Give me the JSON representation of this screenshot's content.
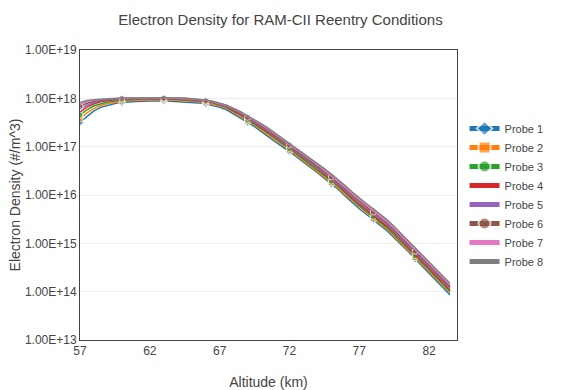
{
  "chart_data": {
    "type": "line",
    "title": "Electron Density for RAM-CII Reentry Conditions",
    "xlabel": "Altitude (km)",
    "ylabel": "Electron Density (#/m^3)",
    "log": "y",
    "grid": "y",
    "legend": "right",
    "xlim": [
      57,
      84
    ],
    "xticks": [
      57,
      62,
      67,
      72,
      77,
      82
    ],
    "ylim": [
      10000000000000.0,
      1e+19
    ],
    "yticks": [
      {
        "value": 10000000000000.0,
        "label": "1.00E+13"
      },
      {
        "value": 100000000000000.0,
        "label": "1.00E+14"
      },
      {
        "value": 1000000000000000.0,
        "label": "1.00E+15"
      },
      {
        "value": 1e+16,
        "label": "1.00E+16"
      },
      {
        "value": 1e+17,
        "label": "1.00E+17"
      },
      {
        "value": 1e+18,
        "label": "1.00E+18"
      },
      {
        "value": 1e+19,
        "label": "1.00E+19"
      }
    ],
    "x": [
      57.0,
      57.5,
      58.0,
      58.5,
      59.0,
      59.5,
      60.0,
      60.5,
      61.0,
      61.5,
      62.0,
      62.5,
      63.0,
      63.5,
      64.0,
      64.5,
      65.0,
      65.5,
      66.0,
      66.5,
      67.0,
      67.5,
      68.0,
      68.5,
      69.0,
      69.5,
      70.0,
      70.5,
      71.0,
      71.5,
      72.0,
      72.5,
      73.0,
      73.5,
      74.0,
      74.5,
      75.0,
      75.5,
      76.0,
      76.5,
      77.0,
      77.5,
      78.0,
      78.5,
      79.0,
      79.5,
      80.0,
      80.5,
      81.0,
      81.5,
      82.0,
      82.5,
      83.0,
      83.5
    ],
    "series": [
      {
        "name": "Probe 1",
        "marker": "diamond",
        "values": [
          3.2e+17,
          4.2e+17,
          5.5e+17,
          6.5e+17,
          7.2e+17,
          7.8e+17,
          8.2e+17,
          8.5e+17,
          8.6e+17,
          8.7e+17,
          8.8e+17,
          8.85e+17,
          8.9e+17,
          8.75e+17,
          8.6e+17,
          8.4e+17,
          8.2e+17,
          8e+17,
          7.7e+17,
          7.2e+17,
          6.5e+17,
          5.8e+17,
          4.8e+17,
          4e+17,
          3.2e+17,
          2.6e+17,
          2e+17,
          1.6e+17,
          1.25e+17,
          1e+17,
          8e+16,
          6.2e+16,
          4.8e+16,
          3.8e+16,
          2.9e+16,
          2.2e+16,
          1.7e+16,
          1.3e+16,
          9500000000000000.0,
          7000000000000000.0,
          5200000000000000.0,
          4000000000000000.0,
          3100000000000000.0,
          2400000000000000.0,
          1800000000000000.0,
          1300000000000000.0,
          950000000000000.0,
          680000000000000.0,
          480000000000000.0,
          340000000000000.0,
          240000000000000.0,
          170000000000000.0,
          120000000000000.0,
          85000000000000.0
        ]
      },
      {
        "name": "Probe 2",
        "marker": "square",
        "values": [
          3.8e+17,
          5e+17,
          6.2e+17,
          7.1e+17,
          7.8e+17,
          8.3e+17,
          8.7e+17,
          9e+17,
          9.1e+17,
          9.2e+17,
          9.3e+17,
          9.35e+17,
          9.4e+17,
          9.25e+17,
          9.1e+17,
          8.9e+17,
          8.7e+17,
          8.5e+17,
          8.1e+17,
          7.6e+17,
          6.9e+17,
          6.2e+17,
          5.1e+17,
          4.3e+17,
          3.4e+17,
          2.8e+17,
          2.2e+17,
          1.75e+17,
          1.35e+17,
          1.1e+17,
          8.5e+16,
          6.6e+16,
          5.1e+16,
          4e+16,
          3.1e+16,
          2.35e+16,
          1.8e+16,
          1.38e+16,
          1e+16,
          7500000000000000.0,
          5600000000000000.0,
          4300000000000000.0,
          3300000000000000.0,
          2550000000000000.0,
          1950000000000000.0,
          1400000000000000.0,
          1000000000000000.0,
          720000000000000.0,
          510000000000000.0,
          365000000000000.0,
          260000000000000.0,
          185000000000000.0,
          132000000000000.0,
          95000000000000.0
        ]
      },
      {
        "name": "Probe 3",
        "marker": "circle",
        "values": [
          4.5e+17,
          5.8e+17,
          7e+17,
          7.8e+17,
          8.4e+17,
          8.8e+17,
          9.2e+17,
          9.4e+17,
          9.55e+17,
          9.65e+17,
          9.7e+17,
          9.75e+17,
          9.75e+17,
          9.65e+17,
          9.5e+17,
          9.3e+17,
          9.1e+17,
          8.85e+17,
          8.5e+17,
          8e+17,
          7.2e+17,
          6.5e+17,
          5.4e+17,
          4.5e+17,
          3.6e+17,
          2.95e+17,
          2.35e+17,
          1.87e+17,
          1.45e+17,
          1.17e+17,
          9.1e+16,
          7.1e+16,
          5.5e+16,
          4.3e+16,
          3.3e+16,
          2.52e+16,
          1.93e+16,
          1.48e+16,
          1.08e+16,
          8000000000000000.0,
          6000000000000000.0,
          4620000000000000.0,
          3550000000000000.0,
          2740000000000000.0,
          2090000000000000.0,
          1510000000000000.0,
          1080000000000000.0,
          774000000000000.0,
          550000000000000.0,
          394000000000000.0,
          280000000000000.0,
          200000000000000.0,
          142000000000000.0,
          102000000000000.0
        ]
      },
      {
        "name": "Probe 4",
        "values": [
          5.2e+17,
          6.6e+17,
          7.7e+17,
          8.5e+17,
          9e+17,
          9.3e+17,
          9.6e+17,
          9.75e+17,
          9.85e+17,
          9.9e+17,
          9.95e+17,
          9.95e+17,
          9.95e+17,
          9.85e+17,
          9.7e+17,
          9.5e+17,
          9.3e+17,
          9.1e+17,
          8.7e+17,
          8.2e+17,
          7.5e+17,
          6.7e+17,
          5.6e+17,
          4.7e+17,
          3.8e+17,
          3.1e+17,
          2.48e+17,
          1.98e+17,
          1.55e+17,
          1.24e+17,
          9.7e+16,
          7.6e+16,
          5.88e+16,
          4.6e+16,
          3.55e+16,
          2.71e+16,
          2.08e+16,
          1.59e+16,
          1.16e+16,
          8600000000000000.0,
          6450000000000000.0,
          4970000000000000.0,
          3830000000000000.0,
          2950000000000000.0,
          2250000000000000.0,
          1630000000000000.0,
          1160000000000000.0,
          830000000000000.0,
          590000000000000.0,
          420000000000000.0,
          300000000000000.0,
          215000000000000.0,
          153000000000000.0,
          110000000000000.0
        ]
      },
      {
        "name": "Probe 5",
        "values": [
          6e+17,
          7.2e+17,
          8.2e+17,
          8.9e+17,
          9.3e+17,
          9.6e+17,
          9.8e+17,
          9.9e+17,
          9.95e+17,
          1e+18,
          1e+18,
          1e+18,
          1e+18,
          9.9e+17,
          9.8e+17,
          9.6e+17,
          9.4e+17,
          9.2e+17,
          8.8e+17,
          8.3e+17,
          7.6e+17,
          6.8e+17,
          5.75e+17,
          4.85e+17,
          3.9e+17,
          3.22e+17,
          2.58e+17,
          2.07e+17,
          1.62e+17,
          1.3e+17,
          1.02e+17,
          8e+16,
          6.2e+16,
          4.86e+16,
          3.75e+16,
          2.87e+16,
          2.2e+16,
          1.69e+16,
          1.24e+16,
          9200000000000000.0,
          6900000000000000.0,
          5320000000000000.0,
          4100000000000000.0,
          3160000000000000.0,
          2420000000000000.0,
          1750000000000000.0,
          1250000000000000.0,
          890000000000000.0,
          635000000000000.0,
          450000000000000.0,
          320000000000000.0,
          230000000000000.0,
          164000000000000.0,
          118000000000000.0
        ]
      },
      {
        "name": "Probe 6",
        "marker": "circle",
        "values": [
          6.8e+17,
          7.9e+17,
          8.7e+17,
          9.3e+17,
          9.6e+17,
          9.8e+17,
          9.95e+17,
          1e+18,
          1.01e+18,
          1.01e+18,
          1.01e+18,
          1.01e+18,
          1.01e+18,
          1.01e+18,
          9.95e+17,
          9.75e+17,
          9.55e+17,
          9.3e+17,
          8.95e+17,
          8.45e+17,
          7.75e+17,
          7e+17,
          5.9e+17,
          5e+17,
          4.05e+17,
          3.35e+17,
          2.7e+17,
          2.17e+17,
          1.7e+17,
          1.37e+17,
          1.08e+17,
          8.5e+16,
          6.62e+16,
          5.2e+16,
          4e+16,
          3.07e+16,
          2.36e+16,
          1.81e+16,
          1.33e+16,
          9900000000000000.0,
          7420000000000000.0,
          5730000000000000.0,
          4420000000000000.0,
          3410000000000000.0,
          2600000000000000.0,
          1890000000000000.0,
          1350000000000000.0,
          960000000000000.0,
          685000000000000.0,
          486000000000000.0,
          346000000000000.0,
          247000000000000.0,
          176000000000000.0,
          127000000000000.0
        ]
      },
      {
        "name": "Probe 7",
        "values": [
          7.5e+17,
          8.5e+17,
          9.1e+17,
          9.5e+17,
          9.75e+17,
          9.9e+17,
          1e+18,
          1.01e+18,
          1.02e+18,
          1.02e+18,
          1.02e+18,
          1.02e+18,
          1.02e+18,
          1.02e+18,
          1.01e+18,
          9.9e+17,
          9.7e+17,
          9.5e+17,
          9.1e+17,
          8.6e+17,
          7.9e+17,
          7.1e+17,
          6.05e+17,
          5.15e+17,
          4.2e+17,
          3.48e+17,
          2.82e+17,
          2.28e+17,
          1.79e+17,
          1.44e+17,
          1.14e+17,
          9e+16,
          7.03e+16,
          5.53e+16,
          4.27e+16,
          3.27e+16,
          2.52e+16,
          1.94e+16,
          1.43e+16,
          1.06e+16,
          7980000000000000.0,
          6170000000000000.0,
          4770000000000000.0,
          3680000000000000.0,
          2810000000000000.0,
          2040000000000000.0,
          1460000000000000.0,
          1040000000000000.0,
          740000000000000.0,
          527000000000000.0,
          374000000000000.0,
          267000000000000.0,
          190000000000000.0,
          137000000000000.0
        ]
      },
      {
        "name": "Probe 8",
        "values": [
          8.2e+17,
          9e+17,
          9.4e+17,
          9.7e+17,
          9.88e+17,
          9.97e+17,
          1.01e+18,
          1.02e+18,
          1.02e+18,
          1.02e+18,
          1.03e+18,
          1.03e+18,
          1.03e+18,
          1.03e+18,
          1.02e+18,
          1.01e+18,
          9.85e+17,
          9.65e+17,
          9.25e+17,
          8.75e+17,
          8.05e+17,
          7.25e+17,
          6.2e+17,
          5.3e+17,
          4.35e+17,
          3.62e+17,
          2.95e+17,
          2.39e+17,
          1.88e+17,
          1.52e+17,
          1.21e+17,
          9.55e+16,
          7.5e+16,
          5.91e+16,
          4.57e+16,
          3.51e+16,
          2.71e+16,
          2.09e+16,
          1.54e+16,
          1.15e+16,
          8630000000000000.0,
          6680000000000000.0,
          5170000000000000.0,
          3990000000000000.0,
          3050000000000000.0,
          2220000000000000.0,
          1590000000000000.0,
          1130000000000000.0,
          805000000000000.0,
          573000000000000.0,
          407000000000000.0,
          290000000000000.0,
          207000000000000.0,
          149000000000000.0
        ]
      }
    ]
  }
}
